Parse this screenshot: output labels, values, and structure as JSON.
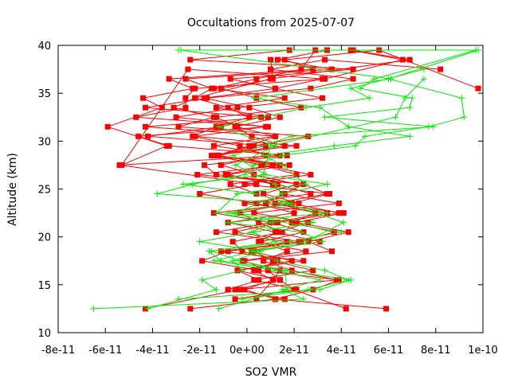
{
  "chart_data": {
    "type": "line",
    "title": "Occultations from 2025-07-07",
    "xlabel": "SO2 VMR",
    "ylabel": "Altitude (km)",
    "xlim": [
      -8e-11,
      1e-10
    ],
    "ylim": [
      10,
      40
    ],
    "x_ticks": [
      {
        "v": -8e-11,
        "label": "-8e-11"
      },
      {
        "v": -6e-11,
        "label": "-6e-11"
      },
      {
        "v": -4e-11,
        "label": "-4e-11"
      },
      {
        "v": -2e-11,
        "label": "-2e-11"
      },
      {
        "v": 0,
        "label": "0e+00"
      },
      {
        "v": 2e-11,
        "label": "2e-11"
      },
      {
        "v": 4e-11,
        "label": "4e-11"
      },
      {
        "v": 6e-11,
        "label": "6e-11"
      },
      {
        "v": 8e-11,
        "label": "8e-11"
      },
      {
        "v": 1e-10,
        "label": "1e-10"
      }
    ],
    "y_ticks": [
      {
        "v": 10,
        "label": "10"
      },
      {
        "v": 15,
        "label": "15"
      },
      {
        "v": 20,
        "label": "20"
      },
      {
        "v": 25,
        "label": "25"
      },
      {
        "v": 30,
        "label": "30"
      },
      {
        "v": 35,
        "label": "35"
      },
      {
        "v": 40,
        "label": "40"
      }
    ],
    "grid": false,
    "legend": "none",
    "series": [
      {
        "color": "#ff0000",
        "marker": "square",
        "x": [
          5.9e-11,
          1.2e-11,
          -1e-12,
          1.1e-11,
          3e-12,
          1.3e-11,
          -2e-12,
          -6e-12,
          1.5e-11,
          5e-12,
          -3e-12,
          1.8e-11,
          4e-12,
          -7e-12,
          2.1e-11,
          6e-12,
          -1.4e-11,
          1.6e-11,
          2e-12,
          -5e-12,
          1.4e-11,
          1e-12,
          -1.8e-11,
          1.2e-11,
          3.2e-11,
          -2.5e-11,
          -5.3e-11,
          -3.4e-11,
          -5.9e-11,
          -3.6e-11,
          -4.4e-11,
          -2.3e-11,
          -3.3e-11,
          2.8e-11,
          1.6e-11,
          5.6e-11,
          9.8e-11
        ],
        "y": [
          12.5,
          13.5,
          14.5,
          15.5,
          16.5,
          17.5,
          18.5,
          19.5,
          20.5,
          21.5,
          22.5,
          23.5,
          24.5,
          25.5,
          26.5,
          27.5,
          28.5,
          29.5,
          30.5,
          31.5,
          32.5,
          33.5,
          34.5,
          35.5,
          36.5,
          37.5,
          27.5,
          29.5,
          31.5,
          33.5,
          34.5,
          35.5,
          36.5,
          37.5,
          38.5,
          39.5,
          35.5
        ]
      },
      {
        "color": "#ff0000",
        "marker": "square",
        "x": [
          -4.3e-11,
          -3e-12,
          3.8e-11,
          1.9e-11,
          7e-12,
          1.7e-11,
          6e-12,
          2.4e-11,
          1.1e-11,
          3.4e-11,
          -1e-12,
          2.7e-11,
          1.3e-11,
          -9e-12,
          1.1e-11,
          -1.2e-11,
          8e-12,
          -4.2e-11,
          -1.1e-11,
          6e-12,
          -4.3e-11,
          -1.7e-11,
          2.7e-11,
          4.5e-11,
          1e-11,
          3.3e-11,
          8.2e-11
        ],
        "y": [
          12.5,
          14.5,
          15.5,
          16.5,
          17.5,
          18.5,
          19.5,
          20.5,
          21.5,
          22.5,
          23.5,
          24.5,
          25.5,
          26.5,
          27.5,
          28.5,
          29.5,
          30.5,
          31.5,
          32.5,
          33.5,
          34.5,
          35.5,
          36.5,
          37.5,
          38.5,
          37.5
        ]
      },
      {
        "color": "#ff0000",
        "marker": "square",
        "x": [
          -2.4e-11,
          1.2e-11,
          2.8e-11,
          3.9e-11,
          5e-12,
          -1.9e-11,
          -8e-12,
          2.2e-11,
          3.7e-11,
          1.9e-11,
          2.9e-11,
          1.2e-11,
          3.4e-11,
          2.4e-11,
          -2.1e-11,
          1.4e-11,
          -1.2e-11,
          3e-12,
          2.6e-11,
          -2.9e-11,
          -1.4e-11,
          -3.1e-11,
          -2.2e-11,
          1e-11,
          6.9e-11,
          4.5e-11
        ],
        "y": [
          12.5,
          13.5,
          14.5,
          15.5,
          16.5,
          17.5,
          18.5,
          19.5,
          20.5,
          21.5,
          22.5,
          23.5,
          24.5,
          25.5,
          26.5,
          27.5,
          28.5,
          29.5,
          30.5,
          31.5,
          32.5,
          33.5,
          34.5,
          36.5,
          38.5,
          39.5
        ]
      },
      {
        "color": "#ff0000",
        "marker": "square",
        "x": [
          4.2e-11,
          2e-11,
          1.4e-11,
          9e-12,
          -1e-12,
          3.6e-11,
          2.6e-11,
          4.3e-11,
          2.1e-11,
          4.1e-11,
          8e-12,
          1.6e-11,
          2.4e-11,
          -1.3e-11,
          -1.8e-11,
          1.7e-11,
          -3.3e-11,
          -4.6e-11,
          9e-12,
          -4.7e-11,
          -2.6e-11,
          -2.6e-11,
          -2.2e-11,
          3.3e-11,
          6.6e-11,
          4.4e-11
        ],
        "y": [
          12.5,
          14.5,
          15.5,
          16.5,
          17.5,
          18.5,
          19.5,
          20.5,
          21.5,
          22.5,
          23.5,
          24.5,
          25.5,
          26.5,
          27.5,
          28.5,
          29.5,
          30.5,
          31.5,
          32.5,
          33.5,
          34.5,
          35.5,
          36.5,
          38.5,
          39.5
        ]
      },
      {
        "color": "#ff0000",
        "marker": "square",
        "x": [
          1.6e-11,
          -5e-12,
          1.4e-11,
          -4e-12,
          2.4e-11,
          -1.1e-11,
          2.3e-11,
          -5e-12,
          1.3e-11,
          3.9e-11,
          1.9e-11,
          3.5e-11,
          -1e-12,
          2.7e-11,
          7e-12,
          -1.5e-11,
          2.1e-11,
          -2.2e-11,
          8e-12,
          -3e-11,
          -4e-12,
          3.2e-11,
          1.2e-11,
          -7e-12,
          4.5e-11,
          -2.4e-11,
          1.8e-11
        ],
        "y": [
          13.5,
          14.5,
          15.5,
          16.5,
          17.5,
          18.5,
          19.5,
          20.5,
          21.5,
          22.5,
          23.5,
          24.5,
          25.5,
          26.5,
          27.5,
          28.5,
          29.5,
          30.5,
          31.5,
          32.5,
          33.5,
          34.5,
          35.5,
          36.5,
          37.5,
          38.5,
          39.5
        ]
      },
      {
        "color": "#ff0000",
        "marker": "square",
        "x": [
          -5e-12,
          2.1e-11,
          3e-12,
          2.8e-11,
          1.1e-11,
          3e-12,
          3.1e-11,
          1.2e-11,
          -8e-12,
          2e-11,
          4e-12,
          -2e-11,
          4e-12,
          -5.4e-11,
          1.4e-11,
          -1.4e-11,
          1.2e-11,
          -4.3e-11,
          9e-12,
          -1.3e-11,
          1.6e-11,
          -1.4e-11,
          4e-12,
          2.3e-11,
          2.9e-11
        ],
        "y": [
          13.5,
          14.5,
          15.5,
          16.5,
          17.5,
          18.5,
          19.5,
          20.5,
          21.5,
          22.5,
          23.5,
          24.5,
          25.5,
          27.5,
          28.5,
          29.5,
          30.5,
          31.5,
          32.5,
          33.5,
          34.5,
          35.5,
          36.5,
          37.5,
          39.5
        ]
      },
      {
        "color": "#ff0000",
        "marker": "square",
        "x": [
          -8e-12,
          5e-12,
          -4e-12,
          1.9e-11,
          2e-12,
          1.7e-11,
          -1.3e-11,
          1e-11,
          -1.4e-11,
          2.2e-11,
          7e-12,
          2.1e-11,
          3e-12,
          -1.1e-11,
          8e-12,
          -3e-12,
          -2.3e-11,
          -1.3e-11,
          1e-12,
          -8e-12,
          -2.2e-11,
          -1.5e-11,
          -2.6e-11,
          3.6e-11,
          1.3e-11,
          3.4e-11
        ],
        "y": [
          14.5,
          15.5,
          16.5,
          17.5,
          18.5,
          19.5,
          20.5,
          21.5,
          22.5,
          23.5,
          24.5,
          25.5,
          26.5,
          27.5,
          28.5,
          29.5,
          30.5,
          31.5,
          32.5,
          33.5,
          34.5,
          35.5,
          36.5,
          37.5,
          38.5,
          39.5
        ]
      },
      {
        "color": "#ff0000",
        "marker": "square",
        "x": [
          4e-12,
          1.1e-11,
          1.4e-11,
          -2e-12,
          2.5e-11,
          5e-12,
          1.3e-11,
          2.6e-11,
          3e-12,
          3.9e-11,
          1.5e-11,
          1.1e-11,
          -8e-12,
          1.8e-11,
          -1.3e-11,
          1e-12,
          1.2e-11,
          -4e-12,
          -1.3e-11,
          2.3e-11,
          4e-12,
          -1.1e-11,
          1.1e-11,
          1e-11
        ],
        "y": [
          13.5,
          15.5,
          16.5,
          17.5,
          18.5,
          19.5,
          20.5,
          21.5,
          22.5,
          23.5,
          24.5,
          25.5,
          26.5,
          27.5,
          28.5,
          29.5,
          30.5,
          31.5,
          32.5,
          33.5,
          34.5,
          35.5,
          36.5,
          38.5
        ]
      }
    ],
    "green_series": [
      {
        "color": "#00ee00",
        "marker": "plus",
        "x": [
          -6.5e-11,
          2.4e-11,
          1.5e-11,
          3.1e-11,
          1.2e-11,
          -1.4e-11,
          3e-12,
          3.2e-11,
          2.3e-11,
          -8e-12,
          3.4e-11,
          1.4e-11,
          -3.8e-11,
          -2.3e-11,
          -1e-12,
          3e-12,
          1.5e-11,
          4.6e-11,
          5e-11,
          7.7e-11,
          9.2e-11,
          9.1e-11,
          6e-11,
          9.8e-11,
          -2.9e-11
        ],
        "y": [
          12.5,
          13.5,
          14.5,
          15.5,
          16.5,
          17.5,
          18.5,
          19.5,
          20.5,
          21.5,
          22.5,
          23.5,
          24.5,
          25.5,
          26.5,
          27.5,
          28.5,
          29.5,
          30.5,
          31.5,
          32.5,
          34.5,
          36.5,
          39.5,
          39.5
        ]
      },
      {
        "color": "#00ee00",
        "marker": "plus",
        "x": [
          -2.9e-11,
          3.1e-11,
          4.4e-11,
          1.7e-11,
          -1.1e-11,
          -1.6e-11,
          1.8e-11,
          4e-11,
          -8e-12,
          1.9e-11,
          3e-12,
          -2.7e-11,
          8e-12,
          -6e-12,
          1.9e-11,
          7.9e-11,
          3.3e-11,
          6.9e-11,
          7e-11,
          4.8e-11,
          5.4e-11,
          9.7e-11
        ],
        "y": [
          13.5,
          14.5,
          15.5,
          16.5,
          17.5,
          18.5,
          19.5,
          20.5,
          22.5,
          23.5,
          24.5,
          25.5,
          26.5,
          28.5,
          30.5,
          31.5,
          32.5,
          33.5,
          34.5,
          35.5,
          36.5,
          39.5
        ]
      },
      {
        "color": "#00ee00",
        "marker": "plus",
        "x": [
          -1.2e-11,
          1.7e-11,
          1.6e-11,
          -3e-12,
          -1.5e-11,
          1.2e-11,
          2e-12,
          1.1e-11,
          -1.3e-11,
          -4e-12,
          2.5e-11,
          1.5e-11,
          7e-12,
          3.7e-11,
          6.9e-11,
          4.3e-11,
          3.1e-11,
          3e-12,
          6.1e-11,
          -2.8e-11
        ],
        "y": [
          12.5,
          14.5,
          16.5,
          17.5,
          18.5,
          19.5,
          20.5,
          21.5,
          22.5,
          24.5,
          25.5,
          27.5,
          28.5,
          29.5,
          30.5,
          31.5,
          33.5,
          34.5,
          36.5,
          39.5
        ]
      },
      {
        "color": "#00ee00",
        "marker": "plus",
        "x": [
          -2e-12,
          2.6e-11,
          4.3e-11,
          3.3e-11,
          1.3e-11,
          2e-12,
          2.5e-11,
          4.1e-11,
          1.7e-11,
          1.2e-11,
          -5e-12,
          1.2e-11,
          -1.2e-11,
          2.5e-11,
          5.2e-11,
          4.4e-11,
          7.5e-11
        ],
        "y": [
          13.5,
          14.5,
          15.5,
          16.5,
          17.5,
          18.5,
          19.5,
          21.5,
          23.5,
          25.5,
          27.5,
          29.5,
          31.5,
          33.5,
          34.5,
          35.5,
          37.5
        ]
      },
      {
        "color": "#00ee00",
        "marker": "plus",
        "x": [
          -4.2e-11,
          -1.3e-11,
          -1.9e-11,
          -2e-12,
          -6e-12,
          6e-12,
          -2e-11,
          3e-12,
          2.8e-11,
          -5e-12,
          1.5e-11,
          3.4e-11,
          7e-12,
          9e-12,
          1e-11,
          6.3e-11,
          6.7e-11,
          7.5e-11
        ],
        "y": [
          12.5,
          14.5,
          15.5,
          16.5,
          17.5,
          18.5,
          19.5,
          20.5,
          21.5,
          22.5,
          24.5,
          25.5,
          26.5,
          28.5,
          29.5,
          32.5,
          34.5,
          36.5
        ]
      }
    ]
  }
}
